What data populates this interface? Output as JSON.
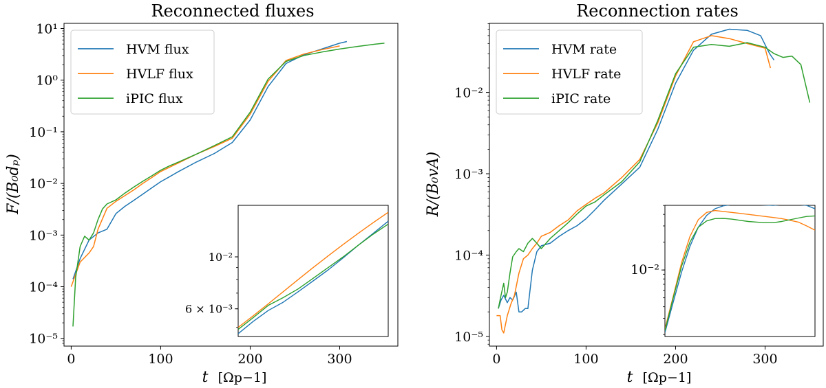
{
  "chart_data": [
    {
      "type": "line",
      "title": "Reconnected fluxes",
      "xlabel": "t [Ω_p^-1]",
      "ylabel": "F/(B0 dp)",
      "xlabel_main": "t",
      "xlabel_unit": "[Ωp−1]",
      "ylabel_text": "F/(B₀dₚ)",
      "xlim": [
        -8,
        365
      ],
      "ylim_log10": [
        -5.15,
        1.1
      ],
      "yscale": "log",
      "xticks": [
        0,
        100,
        200,
        300
      ],
      "yticks_exp": [
        -5,
        -4,
        -3,
        -2,
        -1,
        0,
        1
      ],
      "ytick_labels": [
        "10⁻⁵",
        "10⁻⁴",
        "10⁻³",
        "10⁻²",
        "10⁻¹",
        "10⁰",
        "10¹"
      ],
      "legend": "top-left",
      "series": [
        {
          "name": "HVM flux",
          "color": "#1f77b4",
          "x": [
            2,
            10,
            20,
            30,
            40,
            50,
            60,
            70,
            80,
            90,
            100,
            110,
            120,
            140,
            160,
            180,
            200,
            220,
            240,
            260,
            280,
            300,
            308
          ],
          "y": [
            0.00014,
            0.00035,
            0.0008,
            0.0011,
            0.0013,
            0.0026,
            0.0036,
            0.0047,
            0.0062,
            0.0082,
            0.0108,
            0.0135,
            0.017,
            0.026,
            0.038,
            0.062,
            0.17,
            0.75,
            2.1,
            3.1,
            4.0,
            5.2,
            5.6
          ]
        },
        {
          "name": "HVLF flux",
          "color": "#ff7f0e",
          "x": [
            0,
            10,
            20,
            25,
            30,
            40,
            50,
            60,
            70,
            80,
            90,
            100,
            120,
            140,
            160,
            180,
            200,
            220,
            240,
            260,
            280,
            300
          ],
          "y": [
            0.0001,
            0.0003,
            0.00045,
            0.0006,
            0.0013,
            0.0033,
            0.0045,
            0.0058,
            0.0075,
            0.01,
            0.013,
            0.017,
            0.025,
            0.037,
            0.052,
            0.075,
            0.22,
            0.95,
            2.4,
            3.2,
            3.9,
            4.6
          ]
        },
        {
          "name": "iPIC flux",
          "color": "#2ca02c",
          "x": [
            2,
            5,
            10,
            15,
            20,
            25,
            30,
            35,
            40,
            50,
            60,
            70,
            80,
            90,
            100,
            110,
            120,
            140,
            160,
            180,
            200,
            220,
            240,
            260,
            280,
            300,
            320,
            340,
            350
          ],
          "y": [
            1.7e-05,
            0.00015,
            0.0006,
            0.00095,
            0.0008,
            0.0011,
            0.002,
            0.0032,
            0.004,
            0.0048,
            0.0065,
            0.0085,
            0.011,
            0.014,
            0.018,
            0.022,
            0.026,
            0.037,
            0.054,
            0.08,
            0.24,
            1.05,
            2.3,
            3.0,
            3.5,
            4.0,
            4.5,
            5.0,
            5.2
          ]
        }
      ],
      "inset": {
        "xlim": [
          0,
          100
        ],
        "ylim_log10": [
          -2.34,
          -1.78
        ],
        "ytick_labels": [
          "6 × 10⁻³",
          "10⁻²"
        ],
        "yticks": [
          0.006,
          0.01
        ],
        "series": [
          {
            "name": "HVM flux",
            "x": [
              0,
              10,
              20,
              30,
              40,
              50,
              60,
              70,
              80,
              90,
              100
            ],
            "y": [
              0.0047,
              0.0053,
              0.0059,
              0.0064,
              0.0071,
              0.0079,
              0.0088,
              0.0099,
              0.0112,
              0.0126,
              0.0142
            ]
          },
          {
            "name": "HVLF flux",
            "x": [
              0,
              10,
              20,
              30,
              40,
              50,
              60,
              70,
              80,
              90,
              100
            ],
            "y": [
              0.005,
              0.0056,
              0.0063,
              0.0071,
              0.008,
              0.009,
              0.0101,
              0.0113,
              0.0126,
              0.014,
              0.0155
            ]
          },
          {
            "name": "iPIC flux",
            "x": [
              0,
              10,
              20,
              30,
              40,
              50,
              60,
              70,
              80,
              90,
              100
            ],
            "y": [
              0.0049,
              0.0055,
              0.0062,
              0.0067,
              0.0073,
              0.0081,
              0.009,
              0.01,
              0.0112,
              0.0125,
              0.0138
            ]
          }
        ]
      }
    },
    {
      "type": "line",
      "title": "Reconnection rates",
      "xlabel": "t [Ω_p^-1]",
      "ylabel": "R/(B0 vA)",
      "xlabel_main": "t",
      "xlabel_unit": "[Ωp−1]",
      "ylabel_text": "R/(B₀vA)",
      "xlim": [
        -8,
        365
      ],
      "ylim_log10": [
        -5.12,
        -1.15
      ],
      "yscale": "log",
      "xticks": [
        0,
        100,
        200,
        300
      ],
      "yticks_exp": [
        -5,
        -4,
        -3,
        -2
      ],
      "ytick_labels": [
        "10⁻⁵",
        "10⁻⁴",
        "10⁻³",
        "10⁻²"
      ],
      "legend": "top-left",
      "series": [
        {
          "name": "HVM rate",
          "color": "#1f77b4",
          "x": [
            2,
            5,
            8,
            12,
            15,
            18,
            22,
            25,
            28,
            32,
            35,
            40,
            45,
            50,
            60,
            70,
            80,
            90,
            100,
            110,
            120,
            140,
            160,
            180,
            200,
            220,
            240,
            260,
            280,
            295,
            305,
            310
          ],
          "y": [
            2.2e-05,
            2.8e-05,
            3.2e-05,
            2.6e-05,
            3e-05,
            2.8e-05,
            3.5e-05,
            2e-05,
            2e-05,
            2.2e-05,
            2.2e-05,
            6.5e-05,
            0.00011,
            0.00013,
            0.00014,
            0.00017,
            0.0002,
            0.00023,
            0.00028,
            0.00036,
            0.00047,
            0.00075,
            0.0012,
            0.0035,
            0.013,
            0.033,
            0.052,
            0.06,
            0.058,
            0.05,
            0.03,
            0.025
          ]
        },
        {
          "name": "HVLF rate",
          "color": "#ff7f0e",
          "x": [
            0,
            4,
            6,
            8,
            12,
            16,
            20,
            25,
            30,
            35,
            40,
            45,
            50,
            60,
            70,
            80,
            90,
            100,
            110,
            120,
            140,
            160,
            180,
            200,
            220,
            240,
            260,
            280,
            300,
            306
          ],
          "y": [
            1.8e-05,
            1.8e-05,
            1.2e-05,
            1.1e-05,
            1.8e-05,
            2.5e-05,
            3.2e-05,
            6e-05,
            9e-05,
            0.0001,
            0.00012,
            0.00014,
            0.00017,
            0.00019,
            0.00023,
            0.00027,
            0.00035,
            0.00042,
            0.0005,
            0.00058,
            0.0009,
            0.0015,
            0.0042,
            0.016,
            0.042,
            0.05,
            0.046,
            0.04,
            0.035,
            0.02
          ]
        },
        {
          "name": "iPIC rate",
          "color": "#2ca02c",
          "x": [
            2,
            5,
            8,
            10,
            12,
            15,
            18,
            22,
            25,
            30,
            35,
            40,
            45,
            50,
            60,
            70,
            80,
            90,
            100,
            110,
            120,
            140,
            160,
            180,
            200,
            220,
            240,
            260,
            280,
            300,
            310,
            320,
            330,
            340,
            350
          ],
          "y": [
            2.2e-05,
            3.2e-05,
            4.5e-05,
            3e-05,
            3.5e-05,
            6e-05,
            9.5e-05,
            0.00011,
            0.00012,
            0.00011,
            0.00014,
            0.00016,
            0.00014,
            0.00012,
            0.00016,
            0.0002,
            0.00025,
            0.00032,
            0.0004,
            0.00045,
            0.00055,
            0.0008,
            0.0014,
            0.0045,
            0.017,
            0.036,
            0.039,
            0.037,
            0.041,
            0.036,
            0.03,
            0.027,
            0.028,
            0.022,
            0.0075
          ]
        }
      ],
      "inset": {
        "xlim": [
          180,
          360
        ],
        "ylim_log10": [
          -2.72,
          -1.3
        ],
        "ytick_labels": [
          "10⁻²"
        ],
        "yticks": [
          0.01
        ],
        "series": [
          {
            "name": "HVM rate",
            "x": [
              180,
              190,
              200,
              210,
              220,
              230,
              240,
              250,
              260,
              270,
              280,
              290,
              300,
              310,
              320,
              330,
              340,
              350,
              360
            ],
            "y": [
              0.0021,
              0.0045,
              0.0095,
              0.018,
              0.029,
              0.039,
              0.046,
              0.0495,
              0.051,
              0.0515,
              0.0515,
              0.051,
              0.0505,
              0.05,
              0.051,
              0.0515,
              0.051,
              0.05,
              0.046
            ]
          },
          {
            "name": "HVLF rate",
            "x": [
              180,
              190,
              200,
              210,
              220,
              230,
              240,
              250,
              260,
              270,
              280,
              290,
              300,
              310,
              320,
              330,
              340,
              350,
              360
            ],
            "y": [
              0.0023,
              0.0052,
              0.012,
              0.023,
              0.035,
              0.042,
              0.044,
              0.043,
              0.042,
              0.041,
              0.04,
              0.039,
              0.038,
              0.037,
              0.036,
              0.0345,
              0.033,
              0.03,
              0.027
            ]
          },
          {
            "name": "iPIC rate",
            "x": [
              180,
              190,
              200,
              210,
              220,
              230,
              240,
              250,
              260,
              270,
              280,
              290,
              300,
              310,
              320,
              330,
              340,
              350,
              360
            ],
            "y": [
              0.0022,
              0.005,
              0.011,
              0.02,
              0.029,
              0.034,
              0.036,
              0.0362,
              0.0355,
              0.0345,
              0.0335,
              0.033,
              0.0325,
              0.0325,
              0.0335,
              0.035,
              0.0365,
              0.038,
              0.0385
            ]
          }
        ]
      }
    }
  ]
}
